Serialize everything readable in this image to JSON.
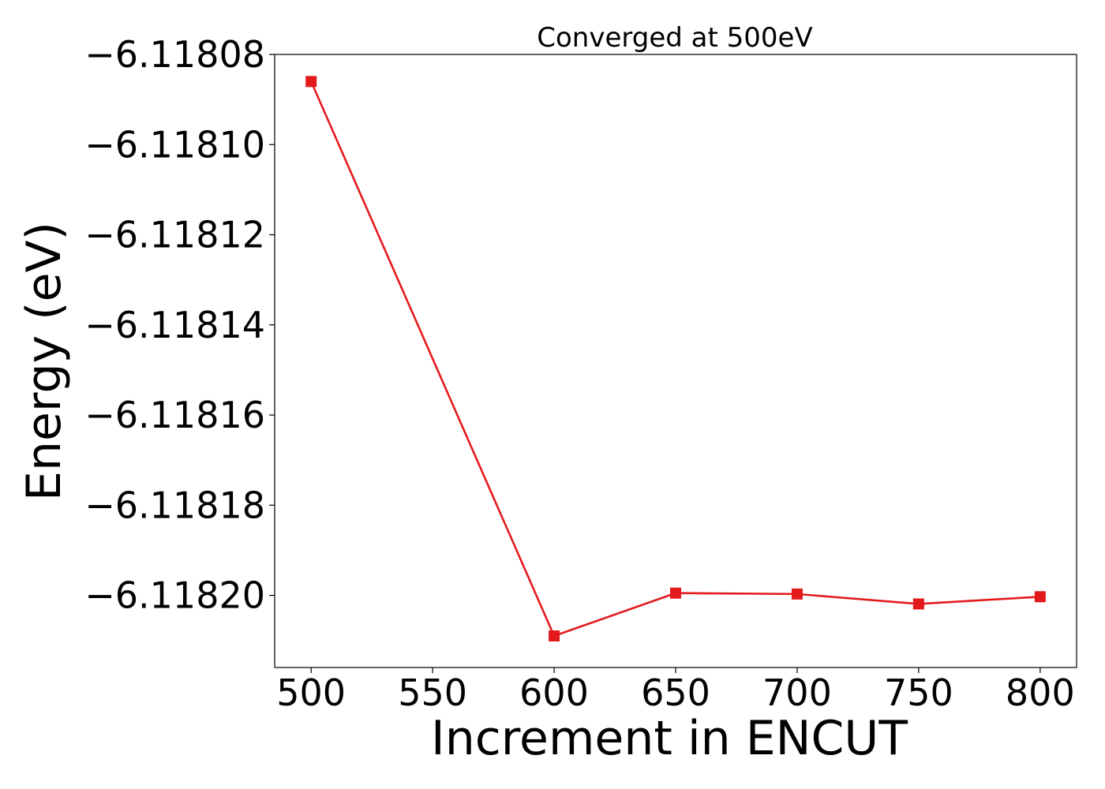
{
  "chart_data": {
    "type": "line",
    "title": "Converged at 500eV",
    "xlabel": "Increment in ENCUT",
    "ylabel": "Energy (eV)",
    "xlim": [
      485,
      815
    ],
    "ylim": [
      -6.118216,
      -6.11808
    ],
    "x_ticks": [
      500,
      550,
      600,
      650,
      700,
      750,
      800
    ],
    "x_tick_labels": [
      "500",
      "550",
      "600",
      "650",
      "700",
      "750",
      "800"
    ],
    "y_ticks": [
      -6.11808,
      -6.1181,
      -6.11812,
      -6.11814,
      -6.11816,
      -6.11818,
      -6.1182
    ],
    "y_tick_labels": [
      "−6.11808",
      "−6.11810",
      "−6.11812",
      "−6.11814",
      "−6.11816",
      "−6.11818",
      "−6.11820"
    ],
    "grid": false,
    "series": [
      {
        "marker": "square",
        "color": "#e31a1c",
        "points": [
          {
            "x": 500,
            "y": -6.118086
          },
          {
            "x": 600,
            "y": -6.118209
          },
          {
            "x": 650,
            "y": -6.1181995
          },
          {
            "x": 700,
            "y": -6.1181997
          },
          {
            "x": 750,
            "y": -6.1182019
          },
          {
            "x": 800,
            "y": -6.1182003
          }
        ]
      }
    ]
  }
}
